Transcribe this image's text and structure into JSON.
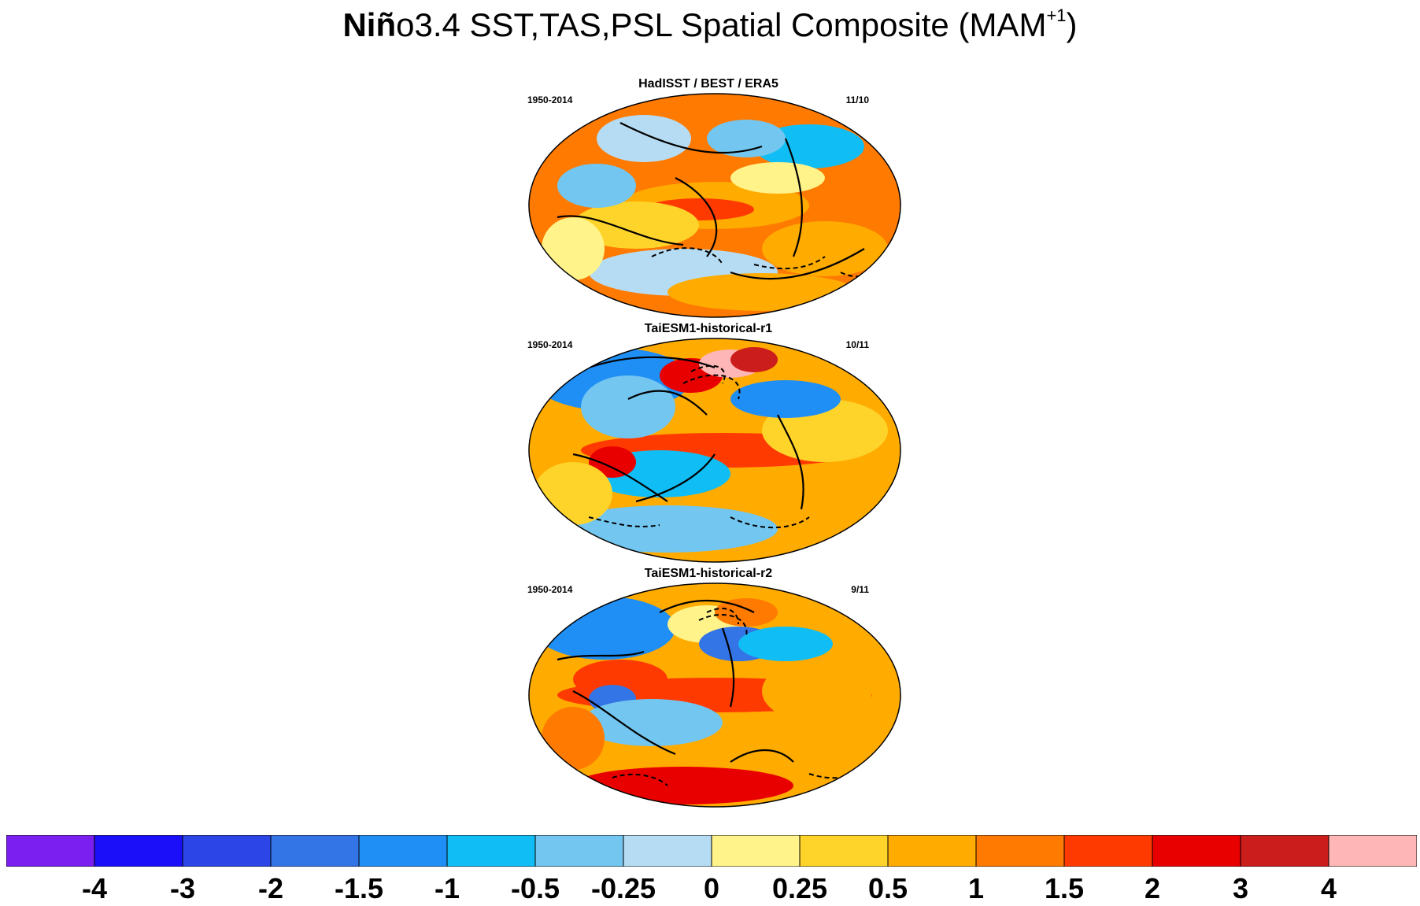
{
  "title": {
    "bold": "Niñ",
    "rest": "o3.4 SST,TAS,PSL Spatial Composite (MAM",
    "sup": "+1",
    "close": ")"
  },
  "panels": [
    {
      "title": "HadISST / BEST / ERA5",
      "left": "1950-2014",
      "right": "11/10",
      "pattern": "obs"
    },
    {
      "title": "TaiESM1-historical-r1",
      "left": "1950-2014",
      "right": "10/11",
      "pattern": "r1"
    },
    {
      "title": "TaiESM1-historical-r2",
      "left": "1950-2014",
      "right": "9/11",
      "pattern": "r2"
    }
  ],
  "colorbar": {
    "colors": [
      "#7a1ff0",
      "#1a0ff8",
      "#2c45e6",
      "#3374e6",
      "#1f8ff5",
      "#10bef5",
      "#73c6ef",
      "#b5dcf2",
      "#fff38a",
      "#ffd42a",
      "#ffab00",
      "#ff7a00",
      "#ff3a00",
      "#e80000",
      "#cc1d1d",
      "#ffb6b6"
    ],
    "labels": [
      "-4",
      "-3",
      "-2",
      "-1.5",
      "-1",
      "-0.5",
      "-0.25",
      "0",
      "0.25",
      "0.5",
      "1",
      "1.5",
      "2",
      "3",
      "4"
    ]
  }
}
